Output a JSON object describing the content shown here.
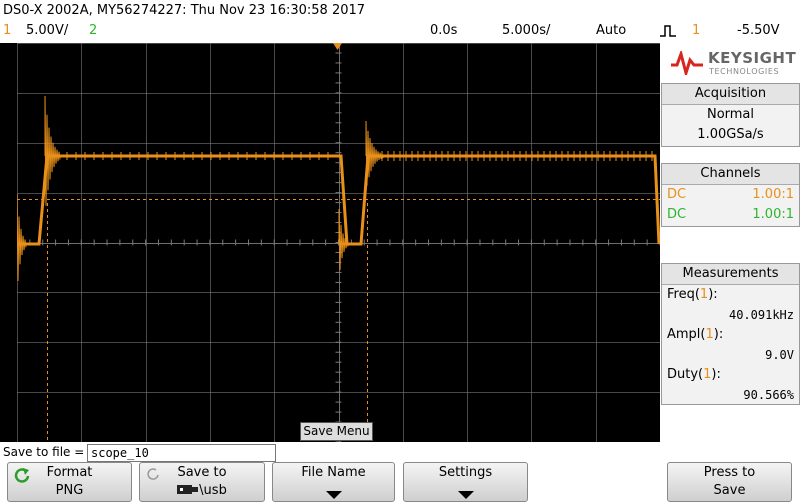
{
  "header": {
    "title": "DS0-X 2002A, MY56274227: Thu Nov 23 16:30:58 2017",
    "ch1_num": "1",
    "ch1_scale": "5.00V/",
    "ch2_num": "2",
    "time_offset": "0.0s",
    "time_scale": "5.000s/",
    "trigger_mode": "Auto",
    "trigger_ch": "1",
    "trigger_level": "-5.50V"
  },
  "screen": {
    "save_menu_label": "Save Menu",
    "ch1_marker": "1",
    "trig_marker": "T"
  },
  "logo": {
    "name": "KEYSIGHT",
    "sub": "TECHNOLOGIES"
  },
  "acquisition": {
    "title": "Acquisition",
    "mode": "Normal",
    "rate": "1.00GSa/s"
  },
  "channels": {
    "title": "Channels",
    "rows": [
      {
        "coupling": "DC",
        "ratio": "1.00:1",
        "color": "#e8901a"
      },
      {
        "coupling": "DC",
        "ratio": "1.00:1",
        "color": "#2db52d"
      }
    ]
  },
  "measurements": {
    "title": "Measurements",
    "items": [
      {
        "label": "Freq",
        "ch": "1",
        "value": "40.091kHz"
      },
      {
        "label": "Ampl",
        "ch": "1",
        "value": "9.0V"
      },
      {
        "label": "Duty",
        "ch": "1",
        "value": "90.566%"
      }
    ]
  },
  "bottom": {
    "save_to_file_label": "Save to file =",
    "filename": "scope_10",
    "softkeys": [
      {
        "line1": "Format",
        "line2": "PNG"
      },
      {
        "line1": "Save to",
        "line2": "\\usb"
      },
      {
        "line1": "File Name",
        "line2": ""
      },
      {
        "line1": "Settings",
        "line2": ""
      },
      {
        "line1": "Press to",
        "line2": "Save"
      }
    ]
  },
  "colors": {
    "ch1": "#e8901a",
    "ch2": "#2db52d"
  }
}
